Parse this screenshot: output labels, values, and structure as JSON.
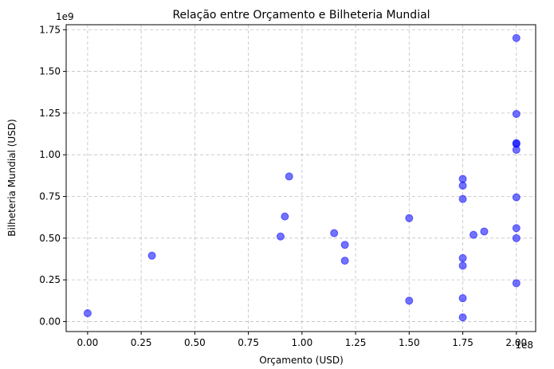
{
  "chart_data": {
    "type": "scatter",
    "title": "Relação entre Orçamento e Bilheteria Mundial",
    "xlabel": "Orçamento (USD)",
    "ylabel": "Bilheteria Mundial (USD)",
    "x_offset_label": "1e8",
    "y_offset_label": "1e9",
    "xlim": [
      -0.1,
      2.09
    ],
    "ylim": [
      -0.06,
      1.78
    ],
    "x_ticks": [
      "0.00",
      "0.25",
      "0.50",
      "0.75",
      "1.00",
      "1.25",
      "1.50",
      "1.75",
      "2.00"
    ],
    "y_ticks": [
      "0.00",
      "0.25",
      "0.50",
      "0.75",
      "1.00",
      "1.25",
      "1.50",
      "1.75"
    ],
    "grid": true,
    "marker_color": "#0000ff",
    "marker_alpha": 0.55,
    "points": [
      {
        "x": 0.0,
        "y": 0.05
      },
      {
        "x": 0.3,
        "y": 0.395
      },
      {
        "x": 0.9,
        "y": 0.51
      },
      {
        "x": 0.92,
        "y": 0.63
      },
      {
        "x": 0.94,
        "y": 0.87
      },
      {
        "x": 1.15,
        "y": 0.53
      },
      {
        "x": 1.2,
        "y": 0.46
      },
      {
        "x": 1.2,
        "y": 0.365
      },
      {
        "x": 1.5,
        "y": 0.62
      },
      {
        "x": 1.5,
        "y": 0.125
      },
      {
        "x": 1.75,
        "y": 0.855
      },
      {
        "x": 1.75,
        "y": 0.815
      },
      {
        "x": 1.75,
        "y": 0.735
      },
      {
        "x": 1.75,
        "y": 0.38
      },
      {
        "x": 1.75,
        "y": 0.335
      },
      {
        "x": 1.75,
        "y": 0.14
      },
      {
        "x": 1.75,
        "y": 0.025
      },
      {
        "x": 1.8,
        "y": 0.52
      },
      {
        "x": 1.85,
        "y": 0.54
      },
      {
        "x": 2.0,
        "y": 1.7
      },
      {
        "x": 2.0,
        "y": 1.245
      },
      {
        "x": 2.0,
        "y": 1.07
      },
      {
        "x": 2.0,
        "y": 1.065
      },
      {
        "x": 2.0,
        "y": 1.03
      },
      {
        "x": 2.0,
        "y": 0.745
      },
      {
        "x": 2.0,
        "y": 0.56
      },
      {
        "x": 2.0,
        "y": 0.5
      },
      {
        "x": 2.0,
        "y": 0.23
      }
    ]
  }
}
